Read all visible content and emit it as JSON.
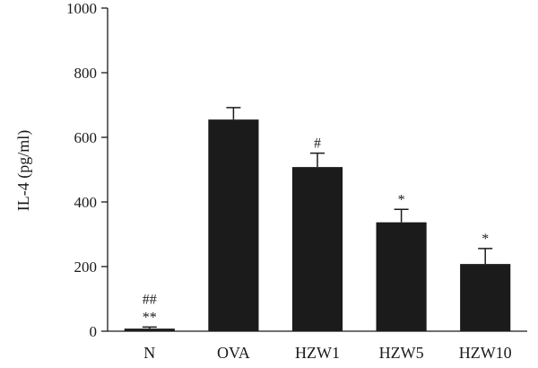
{
  "chart_data": {
    "type": "bar",
    "title": "",
    "xlabel": "",
    "ylabel": "IL-4 (pg/ml)",
    "ylim": [
      0,
      1000
    ],
    "yticks": [
      0,
      200,
      400,
      600,
      800,
      1000
    ],
    "ytick_labels": [
      "0",
      "200",
      "400",
      "600",
      "800",
      "1000"
    ],
    "grid": false,
    "legend": "none",
    "categories": [
      "N",
      "OVA",
      "HZW1",
      "HZW5",
      "HZW10"
    ],
    "values": [
      8,
      655,
      508,
      337,
      208
    ],
    "error": [
      5,
      37,
      43,
      40,
      48
    ],
    "annotations": [
      [
        "##",
        "**"
      ],
      [],
      [
        "#"
      ],
      [
        "*"
      ],
      [
        "*"
      ]
    ],
    "bar_color": "#1b1b1b",
    "axis_color": "#1a1a1a"
  }
}
